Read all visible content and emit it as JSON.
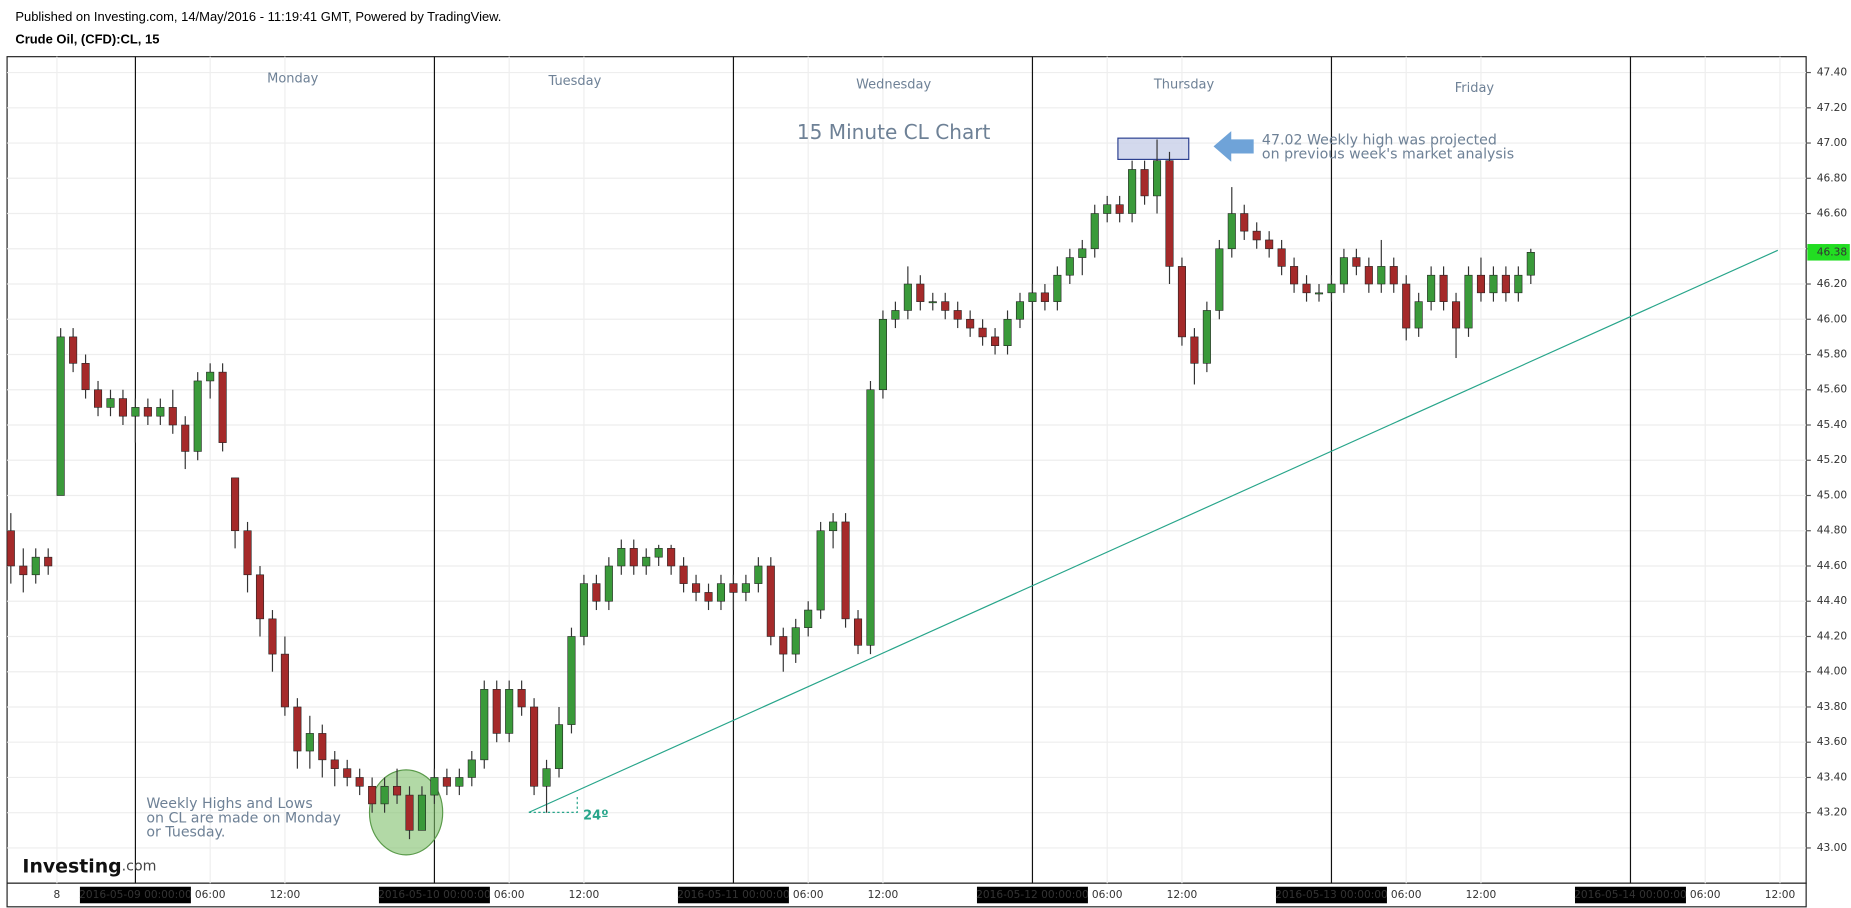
{
  "chart_data": {
    "type": "candlestick",
    "published": "Published on Investing.com, 14/May/2016 - 11:19:41 GMT, Powered by TradingView.",
    "symbol": "Crude Oil, (CFD):CL, 15",
    "title": "15 Minute CL Chart",
    "logo": [
      "Investing",
      ".com"
    ],
    "day_labels": [
      "Monday",
      "Tuesday",
      "Wednesday",
      "Thursday",
      "Friday"
    ],
    "high_note": [
      "47.02 Weekly high was projected",
      "on previous week's market analysis"
    ],
    "low_note": [
      "Weekly Highs and Lows",
      "on CL are made on Monday",
      "or Tuesday."
    ],
    "angle_label": "24º",
    "up_color": "#3a9a3a",
    "down_color": "#a52a2a",
    "last_price": 46.38,
    "xlim": [
      -10.3,
      134.1
    ],
    "ylim": [
      42.8,
      47.49
    ],
    "grid": true,
    "xticks": [
      {
        "value": -6.3,
        "label": "8"
      },
      {
        "value": 0,
        "label": "2016-05-09 00:00:00"
      },
      {
        "value": 6,
        "label": "06:00"
      },
      {
        "value": 12,
        "label": "12:00"
      },
      {
        "value": 24,
        "label": "2016-05-10 00:00:00"
      },
      {
        "value": 30,
        "label": "06:00"
      },
      {
        "value": 36,
        "label": "12:00"
      },
      {
        "value": 48,
        "label": "2016-05-11 00:00:00"
      },
      {
        "value": 54,
        "label": "06:00"
      },
      {
        "value": 60,
        "label": "12:00"
      },
      {
        "value": 72,
        "label": "2016-05-12 00:00:00"
      },
      {
        "value": 78,
        "label": "06:00"
      },
      {
        "value": 84,
        "label": "12:00"
      },
      {
        "value": 96,
        "label": "2016-05-13 00:00:00"
      },
      {
        "value": 102,
        "label": "06:00"
      },
      {
        "value": 108,
        "label": "12:00"
      },
      {
        "value": 120,
        "label": "2016-05-14 00:00:00"
      },
      {
        "value": 126,
        "label": "06:00"
      },
      {
        "value": 132,
        "label": "12:00"
      }
    ],
    "yticks": [
      {
        "value": 43.0,
        "label": "43.00"
      },
      {
        "value": 43.2,
        "label": "43.20"
      },
      {
        "value": 43.4,
        "label": "43.40"
      },
      {
        "value": 43.6,
        "label": "43.60"
      },
      {
        "value": 43.8,
        "label": "43.80"
      },
      {
        "value": 44.0,
        "label": "44.00"
      },
      {
        "value": 44.2,
        "label": "44.20"
      },
      {
        "value": 44.4,
        "label": "44.40"
      },
      {
        "value": 44.6,
        "label": "44.60"
      },
      {
        "value": 44.8,
        "label": "44.80"
      },
      {
        "value": 45.0,
        "label": "45.00"
      },
      {
        "value": 45.2,
        "label": "45.20"
      },
      {
        "value": 45.4,
        "label": "45.40"
      },
      {
        "value": 45.6,
        "label": "45.60"
      },
      {
        "value": 45.8,
        "label": "45.80"
      },
      {
        "value": 46.0,
        "label": "46.00"
      },
      {
        "value": 46.2,
        "label": "46.20"
      },
      {
        "value": 46.4,
        "label": "46.40"
      },
      {
        "value": 46.6,
        "label": "46.60"
      },
      {
        "value": 46.8,
        "label": "46.80"
      },
      {
        "value": 47.0,
        "label": "47.00"
      },
      {
        "value": 47.2,
        "label": "47.20"
      },
      {
        "value": 47.4,
        "label": "47.40"
      }
    ],
    "x": [
      -10,
      -9,
      -8,
      -7,
      -6,
      -5,
      -4,
      -3,
      -2,
      -1,
      0,
      1,
      2,
      3,
      4,
      5,
      6,
      7,
      8,
      9,
      10,
      11,
      12,
      13,
      14,
      15,
      16,
      17,
      18,
      19,
      20,
      21,
      22,
      23,
      24,
      25,
      26,
      27,
      28,
      29,
      30,
      31,
      32,
      33,
      34,
      35,
      36,
      37,
      38,
      39,
      40,
      41,
      42,
      43,
      44,
      45,
      46,
      47,
      48,
      49,
      50,
      51,
      52,
      53,
      54,
      55,
      56,
      57,
      58,
      59,
      60,
      61,
      62,
      63,
      64,
      65,
      66,
      67,
      68,
      69,
      70,
      71,
      72,
      73,
      74,
      75,
      76,
      77,
      78,
      79,
      80,
      81,
      82,
      83,
      84,
      85,
      86,
      87,
      88,
      89,
      90,
      91,
      92,
      93,
      94,
      95,
      96,
      97,
      98,
      99,
      100,
      101,
      102,
      103,
      104,
      105,
      106,
      107,
      108,
      109,
      110,
      111,
      112
    ],
    "open": [
      44.8,
      44.6,
      44.55,
      44.65,
      45.0,
      45.9,
      45.75,
      45.6,
      45.5,
      45.55,
      45.45,
      45.5,
      45.45,
      45.5,
      45.4,
      45.25,
      45.65,
      45.7,
      45.1,
      44.8,
      44.55,
      44.3,
      44.1,
      43.8,
      43.55,
      43.65,
      43.5,
      43.45,
      43.4,
      43.35,
      43.25,
      43.35,
      43.3,
      43.1,
      43.3,
      43.4,
      43.35,
      43.4,
      43.5,
      43.9,
      43.65,
      43.9,
      43.8,
      43.35,
      43.45,
      43.7,
      44.2,
      44.5,
      44.4,
      44.6,
      44.7,
      44.6,
      44.65,
      44.7,
      44.6,
      44.5,
      44.45,
      44.4,
      44.5,
      44.45,
      44.5,
      44.6,
      44.2,
      44.1,
      44.25,
      44.35,
      44.8,
      44.85,
      44.3,
      44.15,
      45.6,
      46.0,
      46.05,
      46.2,
      46.1,
      46.1,
      46.05,
      46.0,
      45.95,
      45.9,
      45.85,
      46.0,
      46.1,
      46.15,
      46.1,
      46.25,
      46.35,
      46.4,
      46.6,
      46.65,
      46.6,
      46.85,
      46.7,
      46.9,
      46.3,
      45.9,
      45.75,
      46.05,
      46.4,
      46.6,
      46.5,
      46.45,
      46.4,
      46.3,
      46.2,
      46.15,
      46.15,
      46.2,
      46.35,
      46.3,
      46.2,
      46.3,
      46.2,
      45.95,
      46.1,
      46.25,
      46.1,
      45.95,
      46.25,
      46.15,
      46.25,
      46.15,
      46.25
    ],
    "high": [
      44.9,
      44.7,
      44.7,
      44.7,
      45.95,
      45.95,
      45.8,
      45.65,
      45.6,
      45.6,
      45.55,
      45.55,
      45.55,
      45.6,
      45.45,
      45.7,
      45.75,
      45.75,
      45.1,
      44.85,
      44.6,
      44.35,
      44.2,
      43.85,
      43.75,
      43.7,
      43.55,
      43.5,
      43.45,
      43.4,
      43.4,
      43.45,
      43.35,
      43.35,
      43.45,
      43.45,
      43.45,
      43.55,
      43.95,
      43.95,
      43.95,
      43.95,
      43.85,
      43.5,
      43.8,
      44.25,
      44.55,
      44.55,
      44.65,
      44.75,
      44.75,
      44.7,
      44.72,
      44.72,
      44.65,
      44.55,
      44.5,
      44.55,
      44.55,
      44.55,
      44.65,
      44.65,
      44.25,
      44.3,
      44.4,
      44.85,
      44.9,
      44.9,
      44.35,
      45.65,
      46.05,
      46.1,
      46.3,
      46.25,
      46.15,
      46.15,
      46.1,
      46.05,
      46.0,
      45.95,
      46.05,
      46.15,
      46.2,
      46.2,
      46.3,
      46.4,
      46.45,
      46.65,
      46.7,
      46.7,
      46.9,
      46.9,
      47.02,
      46.95,
      46.35,
      45.95,
      46.1,
      46.45,
      46.75,
      46.65,
      46.55,
      46.5,
      46.45,
      46.35,
      46.25,
      46.2,
      46.25,
      46.4,
      46.4,
      46.35,
      46.45,
      46.35,
      46.25,
      46.15,
      46.3,
      46.3,
      46.15,
      46.3,
      46.35,
      46.3,
      46.3,
      46.3,
      46.4
    ],
    "low": [
      44.5,
      44.45,
      44.5,
      44.55,
      45.0,
      45.7,
      45.55,
      45.45,
      45.45,
      45.4,
      45.3,
      45.4,
      45.4,
      45.35,
      45.15,
      45.2,
      45.55,
      45.25,
      44.7,
      44.45,
      44.2,
      44.0,
      43.75,
      43.45,
      43.45,
      43.4,
      43.35,
      43.35,
      43.3,
      43.2,
      43.2,
      43.25,
      43.05,
      43.1,
      43.25,
      43.3,
      43.3,
      43.35,
      43.45,
      43.6,
      43.6,
      43.75,
      43.3,
      43.2,
      43.4,
      43.65,
      44.15,
      44.35,
      44.35,
      44.55,
      44.55,
      44.55,
      44.6,
      44.55,
      44.45,
      44.4,
      44.35,
      44.35,
      44.35,
      44.4,
      44.45,
      44.15,
      44.0,
      44.05,
      44.2,
      44.3,
      44.7,
      44.25,
      44.1,
      44.1,
      45.55,
      45.95,
      46.0,
      46.05,
      46.05,
      46.0,
      45.95,
      45.9,
      45.85,
      45.8,
      45.8,
      45.95,
      46.05,
      46.05,
      46.05,
      46.2,
      46.25,
      46.35,
      46.55,
      46.55,
      46.55,
      46.65,
      46.6,
      46.2,
      45.85,
      45.63,
      45.7,
      46.0,
      46.35,
      46.45,
      46.4,
      46.35,
      46.25,
      46.15,
      46.1,
      46.1,
      46.1,
      46.15,
      46.25,
      46.15,
      46.15,
      46.15,
      45.88,
      45.9,
      46.05,
      46.05,
      45.78,
      45.9,
      46.1,
      46.1,
      46.1,
      46.1,
      46.2
    ],
    "close": [
      44.6,
      44.55,
      44.65,
      44.6,
      45.9,
      45.75,
      45.6,
      45.5,
      45.55,
      45.45,
      45.5,
      45.45,
      45.5,
      45.4,
      45.25,
      45.65,
      45.7,
      45.3,
      44.8,
      44.55,
      44.3,
      44.1,
      43.8,
      43.55,
      43.65,
      43.5,
      43.45,
      43.4,
      43.35,
      43.25,
      43.35,
      43.3,
      43.1,
      43.3,
      43.4,
      43.35,
      43.4,
      43.5,
      43.9,
      43.65,
      43.9,
      43.8,
      43.35,
      43.45,
      43.7,
      44.2,
      44.5,
      44.4,
      44.6,
      44.7,
      44.6,
      44.65,
      44.7,
      44.6,
      44.5,
      44.45,
      44.4,
      44.5,
      44.45,
      44.5,
      44.6,
      44.2,
      44.1,
      44.25,
      44.35,
      44.8,
      44.85,
      44.3,
      44.15,
      45.6,
      46.0,
      46.05,
      46.2,
      46.1,
      46.1,
      46.05,
      46.0,
      45.95,
      45.9,
      45.85,
      46.0,
      46.1,
      46.15,
      46.1,
      46.25,
      46.35,
      46.4,
      46.6,
      46.65,
      46.6,
      46.85,
      46.7,
      46.9,
      46.3,
      45.9,
      45.75,
      46.05,
      46.4,
      46.6,
      46.5,
      46.45,
      46.4,
      46.3,
      46.2,
      46.15,
      46.15,
      46.2,
      46.35,
      46.3,
      46.2,
      46.3,
      46.2,
      45.95,
      46.1,
      46.25,
      46.1,
      45.95,
      46.25,
      46.15,
      46.25,
      46.15,
      46.25,
      46.38
    ]
  }
}
